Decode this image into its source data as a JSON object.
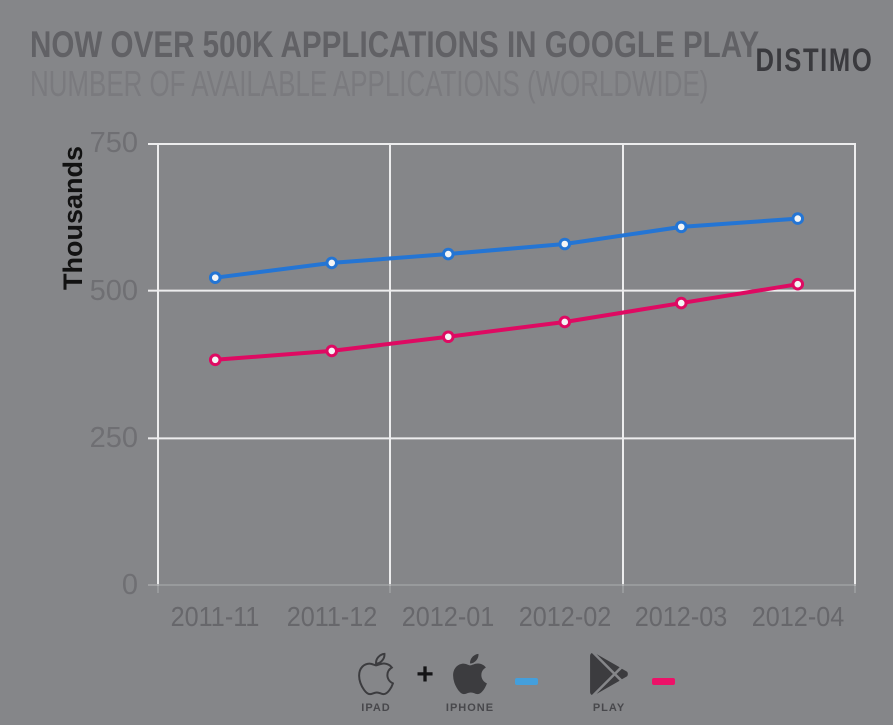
{
  "header": {
    "logo": "DISTIMO"
  },
  "chart_data": {
    "type": "line",
    "title": "NOW OVER 500K APPLICATIONS IN GOOGLE PLAY",
    "subtitle": "NUMBER OF AVAILABLE APPLICATIONS (WORLDWIDE)",
    "ylabel": "Thousands",
    "xlabel": "",
    "ylim": [
      0,
      750
    ],
    "yticks": [
      750,
      500,
      250,
      0
    ],
    "grid": true,
    "legend_position": "bottom",
    "categories": [
      "2011-11",
      "2011-12",
      "2012-01",
      "2012-02",
      "2012-03",
      "2012-04"
    ],
    "series": [
      {
        "name": "iPad + iPhone",
        "color": "#2475d4",
        "marker_fill": "#f4f5f6",
        "values": [
          522,
          547,
          562,
          579,
          608,
          622
        ]
      },
      {
        "name": "Google Play",
        "color": "#de0a62",
        "marker_fill": "#f4f5f6",
        "values": [
          383,
          398,
          422,
          447,
          479,
          511
        ]
      }
    ]
  },
  "legend": {
    "plus_symbol": "+",
    "ipad_label": "IPAD",
    "iphone_label": "IPHONE",
    "play_label": "PLAY",
    "apple_dash_color": "#449fdc",
    "play_dash_color": "#ed1168",
    "icon_color": "#3c3c3f"
  },
  "colors": {
    "background": "#858689",
    "grid": "#ededee",
    "axis": "#9fa0a2",
    "title": "#616165",
    "subtitle": "#7a7a7e",
    "tick_label": "#6f6f73"
  }
}
